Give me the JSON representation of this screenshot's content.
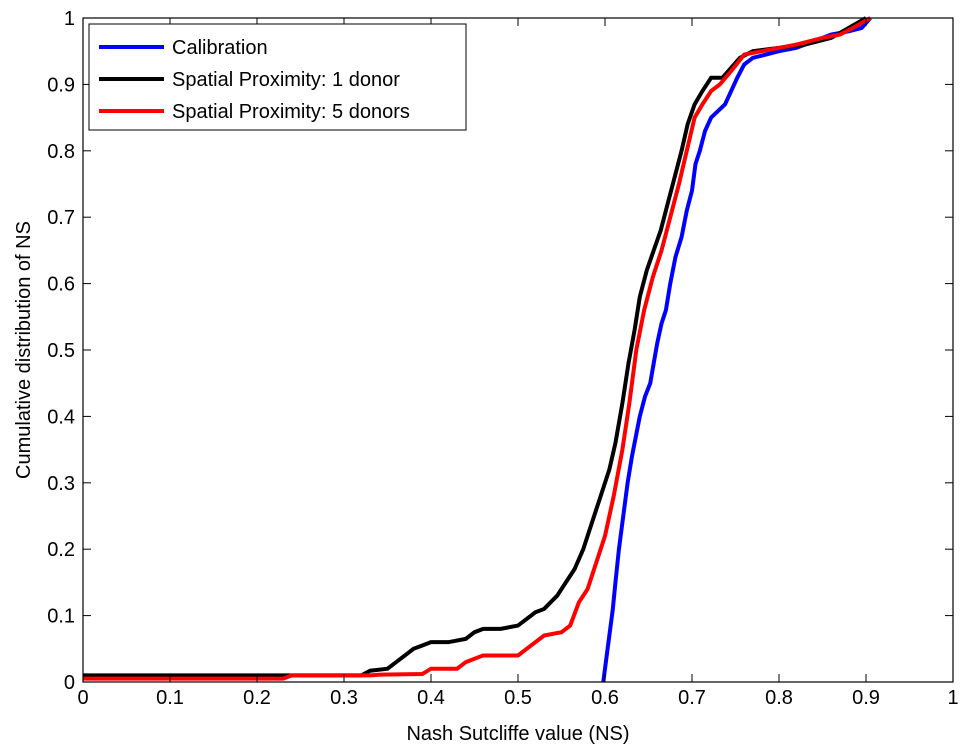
{
  "chart_data": {
    "type": "line",
    "title": "",
    "xlabel": "Nash Sutcliffe value (NS)",
    "ylabel": "Cumulative distribution of NS",
    "xlim": [
      0,
      1
    ],
    "ylim": [
      0,
      1
    ],
    "xticks": [
      0,
      0.1,
      0.2,
      0.3,
      0.4,
      0.5,
      0.6,
      0.7,
      0.8,
      0.9,
      1
    ],
    "xtick_labels": [
      "0",
      "0.1",
      "0.2",
      "0.3",
      "0.4",
      "0.5",
      "0.6",
      "0.7",
      "0.8",
      "0.9",
      "1"
    ],
    "yticks": [
      0,
      0.1,
      0.2,
      0.3,
      0.4,
      0.5,
      0.6,
      0.7,
      0.8,
      0.9,
      1
    ],
    "ytick_labels": [
      "0",
      "0.1",
      "0.2",
      "0.3",
      "0.4",
      "0.5",
      "0.6",
      "0.7",
      "0.8",
      "0.9",
      "1"
    ],
    "grid": false,
    "legend_position": "top-left",
    "series": [
      {
        "name": "Calibration",
        "color": "#0000ff",
        "points": [
          [
            0.598,
            0.0
          ],
          [
            0.6,
            0.02
          ],
          [
            0.603,
            0.05
          ],
          [
            0.606,
            0.08
          ],
          [
            0.609,
            0.11
          ],
          [
            0.612,
            0.15
          ],
          [
            0.616,
            0.2
          ],
          [
            0.621,
            0.25
          ],
          [
            0.626,
            0.3
          ],
          [
            0.631,
            0.34
          ],
          [
            0.637,
            0.38
          ],
          [
            0.64,
            0.4
          ],
          [
            0.646,
            0.43
          ],
          [
            0.652,
            0.45
          ],
          [
            0.656,
            0.48
          ],
          [
            0.66,
            0.51
          ],
          [
            0.665,
            0.54
          ],
          [
            0.67,
            0.56
          ],
          [
            0.675,
            0.6
          ],
          [
            0.681,
            0.64
          ],
          [
            0.688,
            0.67
          ],
          [
            0.694,
            0.71
          ],
          [
            0.7,
            0.74
          ],
          [
            0.704,
            0.78
          ],
          [
            0.709,
            0.8
          ],
          [
            0.715,
            0.83
          ],
          [
            0.722,
            0.85
          ],
          [
            0.73,
            0.86
          ],
          [
            0.738,
            0.87
          ],
          [
            0.745,
            0.89
          ],
          [
            0.752,
            0.91
          ],
          [
            0.76,
            0.93
          ],
          [
            0.77,
            0.94
          ],
          [
            0.785,
            0.945
          ],
          [
            0.8,
            0.95
          ],
          [
            0.82,
            0.955
          ],
          [
            0.84,
            0.965
          ],
          [
            0.86,
            0.975
          ],
          [
            0.88,
            0.98
          ],
          [
            0.895,
            0.985
          ],
          [
            0.905,
            1.0
          ]
        ]
      },
      {
        "name": "Spatial Proximity: 1 donor",
        "color": "#000000",
        "points": [
          [
            0.0,
            0.01
          ],
          [
            0.32,
            0.01
          ],
          [
            0.33,
            0.017
          ],
          [
            0.35,
            0.02
          ],
          [
            0.36,
            0.03
          ],
          [
            0.37,
            0.04
          ],
          [
            0.38,
            0.05
          ],
          [
            0.39,
            0.055
          ],
          [
            0.4,
            0.06
          ],
          [
            0.42,
            0.06
          ],
          [
            0.44,
            0.065
          ],
          [
            0.45,
            0.075
          ],
          [
            0.46,
            0.08
          ],
          [
            0.48,
            0.08
          ],
          [
            0.5,
            0.085
          ],
          [
            0.51,
            0.095
          ],
          [
            0.52,
            0.105
          ],
          [
            0.53,
            0.11
          ],
          [
            0.545,
            0.13
          ],
          [
            0.555,
            0.15
          ],
          [
            0.565,
            0.17
          ],
          [
            0.575,
            0.2
          ],
          [
            0.585,
            0.24
          ],
          [
            0.595,
            0.28
          ],
          [
            0.605,
            0.32
          ],
          [
            0.612,
            0.36
          ],
          [
            0.62,
            0.42
          ],
          [
            0.627,
            0.48
          ],
          [
            0.634,
            0.53
          ],
          [
            0.64,
            0.58
          ],
          [
            0.648,
            0.62
          ],
          [
            0.656,
            0.65
          ],
          [
            0.664,
            0.68
          ],
          [
            0.672,
            0.72
          ],
          [
            0.68,
            0.76
          ],
          [
            0.688,
            0.8
          ],
          [
            0.695,
            0.84
          ],
          [
            0.703,
            0.87
          ],
          [
            0.712,
            0.89
          ],
          [
            0.722,
            0.91
          ],
          [
            0.735,
            0.91
          ],
          [
            0.745,
            0.925
          ],
          [
            0.755,
            0.94
          ],
          [
            0.77,
            0.95
          ],
          [
            0.8,
            0.955
          ],
          [
            0.83,
            0.96
          ],
          [
            0.86,
            0.97
          ],
          [
            0.88,
            0.985
          ],
          [
            0.9,
            1.0
          ]
        ]
      },
      {
        "name": "Spatial Proximity: 5 donors",
        "color": "#ff0000",
        "points": [
          [
            0.0,
            0.005
          ],
          [
            0.23,
            0.005
          ],
          [
            0.24,
            0.01
          ],
          [
            0.33,
            0.01
          ],
          [
            0.34,
            0.011
          ],
          [
            0.39,
            0.012
          ],
          [
            0.4,
            0.02
          ],
          [
            0.43,
            0.02
          ],
          [
            0.44,
            0.03
          ],
          [
            0.45,
            0.035
          ],
          [
            0.46,
            0.04
          ],
          [
            0.5,
            0.04
          ],
          [
            0.51,
            0.05
          ],
          [
            0.52,
            0.06
          ],
          [
            0.53,
            0.07
          ],
          [
            0.55,
            0.075
          ],
          [
            0.56,
            0.085
          ],
          [
            0.57,
            0.12
          ],
          [
            0.58,
            0.14
          ],
          [
            0.59,
            0.18
          ],
          [
            0.6,
            0.22
          ],
          [
            0.61,
            0.28
          ],
          [
            0.62,
            0.35
          ],
          [
            0.628,
            0.42
          ],
          [
            0.636,
            0.5
          ],
          [
            0.645,
            0.56
          ],
          [
            0.655,
            0.61
          ],
          [
            0.665,
            0.65
          ],
          [
            0.675,
            0.7
          ],
          [
            0.685,
            0.75
          ],
          [
            0.694,
            0.8
          ],
          [
            0.703,
            0.85
          ],
          [
            0.712,
            0.87
          ],
          [
            0.722,
            0.89
          ],
          [
            0.732,
            0.9
          ],
          [
            0.745,
            0.92
          ],
          [
            0.76,
            0.945
          ],
          [
            0.78,
            0.95
          ],
          [
            0.82,
            0.96
          ],
          [
            0.85,
            0.97
          ],
          [
            0.87,
            0.975
          ],
          [
            0.885,
            0.985
          ],
          [
            0.905,
            1.0
          ]
        ]
      }
    ]
  }
}
